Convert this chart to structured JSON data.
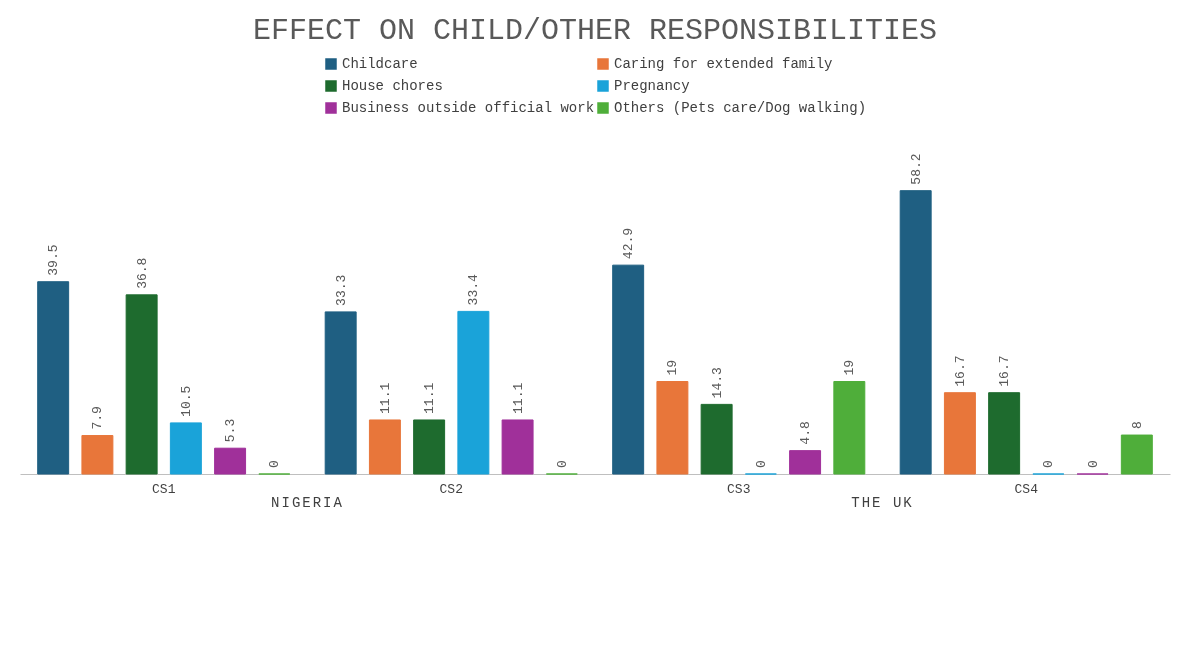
{
  "chart_data": {
    "type": "bar",
    "title": "EFFECT ON CHILD/OTHER RESPONSIBILITIES",
    "categories": [
      "CS1",
      "CS2",
      "CS3",
      "CS4"
    ],
    "series": [
      {
        "name": "Childcare",
        "color": "#1f5f82",
        "values": [
          39.5,
          33.3,
          42.9,
          58.2
        ]
      },
      {
        "name": "Caring for extended family",
        "color": "#e8763a",
        "values": [
          7.9,
          11.1,
          19,
          16.7
        ]
      },
      {
        "name": "House chores",
        "color": "#1e6b2e",
        "values": [
          36.8,
          11.1,
          14.3,
          16.7
        ]
      },
      {
        "name": "Pregnancy",
        "color": "#1aa3d9",
        "values": [
          10.5,
          33.4,
          0,
          0
        ]
      },
      {
        "name": "Business outside official work",
        "color": "#a0309a",
        "values": [
          5.3,
          11.1,
          4.8,
          0
        ]
      },
      {
        "name": "Others (Pets care/Dog walking)",
        "color": "#4fae3a",
        "values": [
          0,
          0,
          19,
          8
        ]
      }
    ],
    "data_labels": true,
    "legend": "top",
    "grid": false,
    "annotations": [
      "NIGERIA",
      "THE UK"
    ]
  }
}
